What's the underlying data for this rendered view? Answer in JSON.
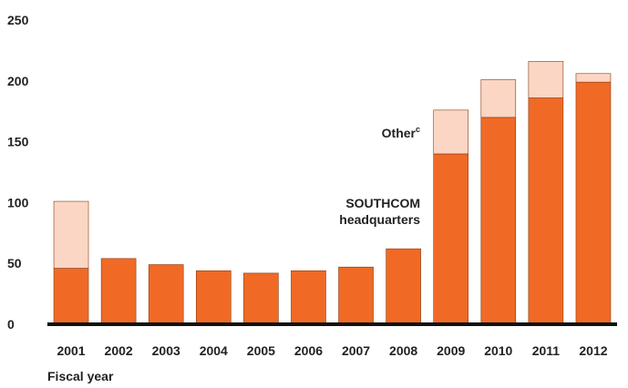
{
  "chart_data": {
    "type": "bar",
    "stacked": true,
    "title": "",
    "xlabel": "Fiscal year",
    "ylabel": "",
    "ylim": [
      0,
      250
    ],
    "yticks": [
      0,
      50,
      100,
      150,
      200,
      250
    ],
    "categories": [
      "2001",
      "2002",
      "2003",
      "2004",
      "2005",
      "2006",
      "2007",
      "2008",
      "2009",
      "2010",
      "2011",
      "2012"
    ],
    "series": [
      {
        "name": "SOUTHCOM headquarters",
        "color": "#f06a26",
        "values": [
          46,
          54,
          49,
          44,
          42,
          44,
          47,
          62,
          140,
          170,
          186,
          199
        ]
      },
      {
        "name": "Other",
        "superscript": "c",
        "color": "#fbd6c4",
        "values": [
          55,
          0,
          0,
          0,
          0,
          0,
          0,
          0,
          36,
          31,
          30,
          7
        ]
      }
    ],
    "grid": false,
    "legend": "inline-annotations"
  }
}
